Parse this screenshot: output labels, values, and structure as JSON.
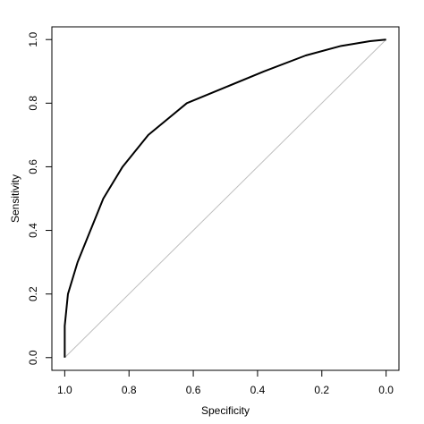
{
  "chart_data": {
    "type": "line",
    "xlabel": "Specificity",
    "ylabel": "Sensitivity",
    "x": [
      1.0,
      1.0,
      0.99,
      0.96,
      0.92,
      0.88,
      0.82,
      0.74,
      0.62,
      0.5,
      0.38,
      0.25,
      0.14,
      0.05,
      0.0
    ],
    "series": [
      {
        "color": "#000000",
        "values": [
          0,
          0.1,
          0.2,
          0.3,
          0.4,
          0.5,
          0.6,
          0.7,
          0.8,
          0.85,
          0.9,
          0.95,
          0.98,
          0.995,
          1.0
        ]
      }
    ],
    "reference_line": {
      "x": [
        1,
        0
      ],
      "y": [
        0,
        1
      ],
      "color": "#bdbdbd"
    },
    "xlim": [
      1.04,
      -0.04
    ],
    "ylim": [
      -0.04,
      1.04
    ],
    "xticks": [
      {
        "value": 1,
        "label": "1.0"
      },
      0.8,
      0.6,
      0.4,
      0.2,
      {
        "value": 0,
        "label": "0.0"
      }
    ],
    "yticks": [
      {
        "value": 0,
        "label": "0.0"
      },
      0.2,
      0.4,
      0.6,
      0.8,
      {
        "value": 1,
        "label": "1.0"
      }
    ]
  }
}
